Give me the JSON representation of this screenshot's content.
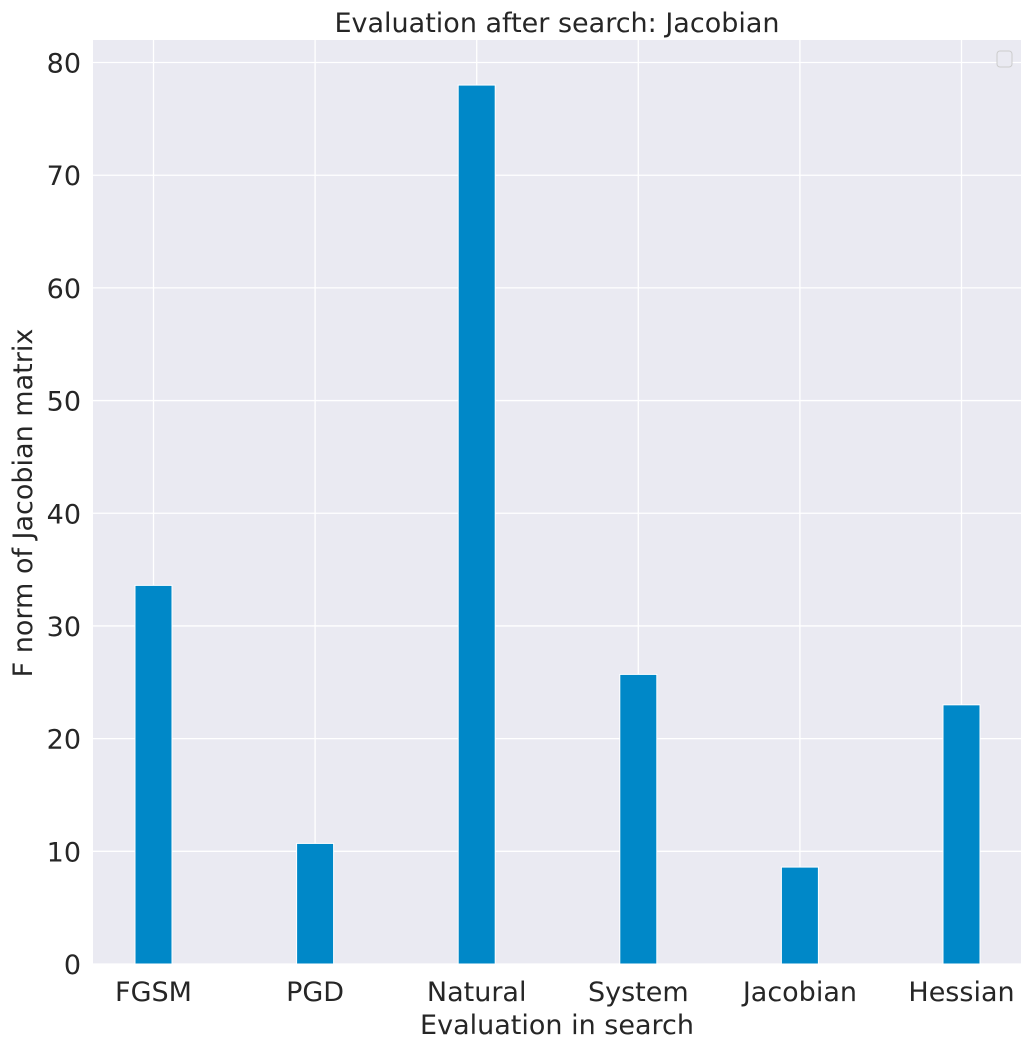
{
  "chart_data": {
    "type": "bar",
    "title": "Evaluation after search: Jacobian",
    "xlabel": "Evaluation in search",
    "ylabel": "F norm of Jacobian matrix",
    "categories": [
      "FGSM",
      "PGD",
      "Natural",
      "System",
      "Jacobian",
      "Hessian"
    ],
    "values": [
      33.6,
      10.7,
      78.0,
      25.7,
      8.6,
      23.0
    ],
    "yticks": [
      0,
      10,
      20,
      30,
      40,
      50,
      60,
      70,
      80
    ],
    "ylim": [
      0,
      82
    ],
    "grid": true,
    "legend": "top-right (empty)",
    "colors": {
      "bar": "#0088c8",
      "background": "#eaeaf2",
      "grid": "#ffffff",
      "text": "#262626"
    }
  }
}
